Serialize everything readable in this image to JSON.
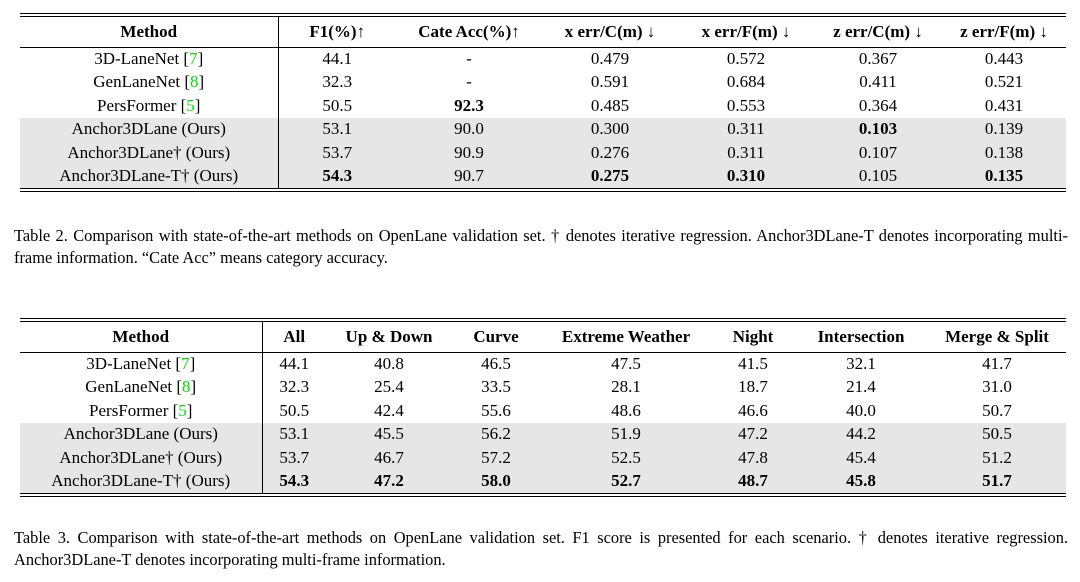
{
  "colors": {
    "citation_green": "#00dd00",
    "row_highlight": "#e6e6e6",
    "text": "#000000"
  },
  "table2": {
    "columns": [
      "Method",
      "F1(%)↑",
      "Cate Acc(%)↑",
      "x err/C(m) ↓",
      "x err/F(m) ↓",
      "z err/C(m) ↓",
      "z err/F(m) ↓"
    ],
    "rows": [
      {
        "method": "3D-LaneNet",
        "citation": "7",
        "highlight": false,
        "values": [
          "44.1",
          "-",
          "0.479",
          "0.572",
          "0.367",
          "0.443"
        ],
        "bold_values": []
      },
      {
        "method": "GenLaneNet",
        "citation": "8",
        "highlight": false,
        "values": [
          "32.3",
          "-",
          "0.591",
          "0.684",
          "0.411",
          "0.521"
        ],
        "bold_values": []
      },
      {
        "method": "PersFormer",
        "citation": "5",
        "highlight": false,
        "values": [
          "50.5",
          "92.3",
          "0.485",
          "0.553",
          "0.364",
          "0.431"
        ],
        "bold_values": [
          1
        ]
      },
      {
        "method": "Anchor3DLane (Ours)",
        "citation": null,
        "highlight": true,
        "values": [
          "53.1",
          "90.0",
          "0.300",
          "0.311",
          "0.103",
          "0.139"
        ],
        "bold_values": [
          4
        ]
      },
      {
        "method": "Anchor3DLane† (Ours)",
        "citation": null,
        "highlight": true,
        "values": [
          "53.7",
          "90.9",
          "0.276",
          "0.311",
          "0.107",
          "0.138"
        ],
        "bold_values": []
      },
      {
        "method": "Anchor3DLane-T† (Ours)",
        "citation": null,
        "highlight": true,
        "values": [
          "54.3",
          "90.7",
          "0.275",
          "0.310",
          "0.105",
          "0.135"
        ],
        "bold_values": [
          0,
          2,
          3,
          5
        ]
      }
    ],
    "caption": "Table 2. Comparison with state-of-the-art methods on OpenLane validation set. † denotes iterative regression. Anchor3DLane-T denotes incorporating multi-frame information. “Cate Acc” means category accuracy."
  },
  "table3": {
    "columns": [
      "Method",
      "All",
      "Up & Down",
      "Curve",
      "Extreme Weather",
      "Night",
      "Intersection",
      "Merge & Split"
    ],
    "rows": [
      {
        "method": "3D-LaneNet",
        "citation": "7",
        "highlight": false,
        "values": [
          "44.1",
          "40.8",
          "46.5",
          "47.5",
          "41.5",
          "32.1",
          "41.7"
        ],
        "bold_values": []
      },
      {
        "method": "GenLaneNet",
        "citation": "8",
        "highlight": false,
        "values": [
          "32.3",
          "25.4",
          "33.5",
          "28.1",
          "18.7",
          "21.4",
          "31.0"
        ],
        "bold_values": []
      },
      {
        "method": "PersFormer",
        "citation": "5",
        "highlight": false,
        "values": [
          "50.5",
          "42.4",
          "55.6",
          "48.6",
          "46.6",
          "40.0",
          "50.7"
        ],
        "bold_values": []
      },
      {
        "method": "Anchor3DLane (Ours)",
        "citation": null,
        "highlight": true,
        "values": [
          "53.1",
          "45.5",
          "56.2",
          "51.9",
          "47.2",
          "44.2",
          "50.5"
        ],
        "bold_values": []
      },
      {
        "method": "Anchor3DLane† (Ours)",
        "citation": null,
        "highlight": true,
        "values": [
          "53.7",
          "46.7",
          "57.2",
          "52.5",
          "47.8",
          "45.4",
          "51.2"
        ],
        "bold_values": []
      },
      {
        "method": "Anchor3DLane-T† (Ours)",
        "citation": null,
        "highlight": true,
        "values": [
          "54.3",
          "47.2",
          "58.0",
          "52.7",
          "48.7",
          "45.8",
          "51.7"
        ],
        "bold_values": [
          0,
          1,
          2,
          3,
          4,
          5,
          6
        ]
      }
    ],
    "caption": "Table 3. Comparison with state-of-the-art methods on OpenLane validation set. F1 score is presented for each scenario. † denotes iterative regression. Anchor3DLane-T denotes incorporating multi-frame information."
  }
}
